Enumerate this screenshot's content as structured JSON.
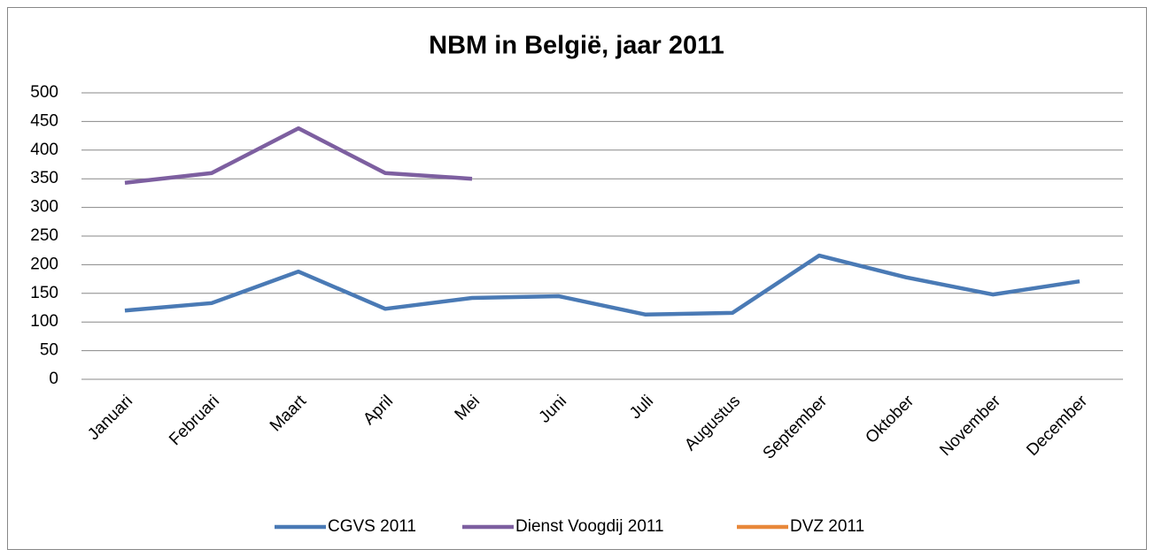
{
  "chart_data": {
    "type": "line",
    "title": "NBM in België, jaar 2011",
    "categories": [
      "Januari",
      "Februari",
      "Maart",
      "April",
      "Mei",
      "Juni",
      "Juli",
      "Augustus",
      "September",
      "Oktober",
      "November",
      "December"
    ],
    "series": [
      {
        "name": "CGVS 2011",
        "color": "#4a7ab5",
        "values": [
          120,
          133,
          188,
          123,
          142,
          145,
          113,
          116,
          216,
          178,
          148,
          171
        ]
      },
      {
        "name": "Dienst Voogdij 2011",
        "color": "#7d5fa0",
        "values": [
          343,
          360,
          438,
          360,
          350,
          null,
          null,
          null,
          null,
          null,
          null,
          null
        ]
      },
      {
        "name": "DVZ 2011",
        "color": "#e8883a",
        "values": [
          null,
          null,
          null,
          null,
          null,
          null,
          null,
          null,
          null,
          null,
          null,
          null
        ]
      }
    ],
    "ylim": [
      0,
      500
    ],
    "yticks": [
      0,
      50,
      100,
      150,
      200,
      250,
      300,
      350,
      400,
      450,
      500
    ],
    "grid": true,
    "legend": "bottom"
  }
}
